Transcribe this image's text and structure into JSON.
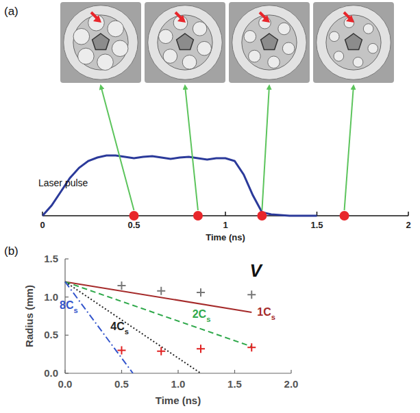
{
  "chart_data": [
    {
      "type": "line",
      "label": "(a)",
      "x_label": "Time (ns)",
      "xlim": [
        0,
        2
      ],
      "xticks": [
        0,
        0.5,
        1,
        1.5,
        2
      ],
      "ylim": [
        0,
        1
      ],
      "tick_labels": "x",
      "series": [
        {
          "name": "Laser pulse",
          "color": "#2b3a9a",
          "line_style": "solid",
          "x": [
            0,
            0.05,
            0.1,
            0.15,
            0.2,
            0.25,
            0.3,
            0.35,
            0.4,
            0.45,
            0.5,
            0.55,
            0.6,
            0.65,
            0.7,
            0.75,
            0.8,
            0.85,
            0.9,
            0.95,
            1.0,
            1.05,
            1.1,
            1.15,
            1.2,
            1.25,
            1.3,
            1.35,
            1.4,
            1.45,
            1.5
          ],
          "values": [
            0,
            0.15,
            0.35,
            0.55,
            0.7,
            0.8,
            0.85,
            0.88,
            0.88,
            0.86,
            0.84,
            0.86,
            0.87,
            0.85,
            0.83,
            0.85,
            0.86,
            0.84,
            0.82,
            0.84,
            0.84,
            0.8,
            0.6,
            0.3,
            0.05,
            0.02,
            0.01,
            0,
            0,
            0,
            0
          ]
        },
        {
          "type": "scatter",
          "marker": "circle",
          "color": "#e8262b",
          "x": [
            0.5,
            0.85,
            1.2,
            1.65
          ],
          "values": [
            0,
            0,
            0,
            0
          ]
        }
      ]
    },
    {
      "type": "line",
      "label": "(b)",
      "x_label": "Time (ns)",
      "y_label": "Radius (mm)",
      "xlim": [
        0,
        2
      ],
      "ylim": [
        0,
        1.5
      ],
      "xticks": [
        {
          "value": 0,
          "label": "0.0"
        },
        {
          "value": 0.5,
          "label": "0.5"
        },
        {
          "value": 1,
          "label": "1.0"
        },
        {
          "value": 1.5,
          "label": "1.5"
        },
        {
          "value": 2,
          "label": "2.0"
        }
      ],
      "yticks": [
        {
          "value": 0,
          "label": "0.0"
        },
        {
          "value": 0.5,
          "label": "0.5"
        },
        {
          "value": 1,
          "label": "1.0"
        },
        {
          "value": 1.5,
          "label": "1.5"
        }
      ],
      "series": [
        {
          "name": "1Cs",
          "color": "#a52a2a",
          "line_style": "solid",
          "x": [
            0,
            1.65
          ],
          "values": [
            1.2,
            0.8
          ]
        },
        {
          "name": "2Cs",
          "color": "#2ea84a",
          "line_style": "dashed",
          "x": [
            0,
            1.65
          ],
          "values": [
            1.2,
            0.35
          ]
        },
        {
          "name": "4Cs",
          "color": "#222222",
          "line_style": "dotted",
          "x": [
            0,
            1.2
          ],
          "values": [
            1.2,
            0
          ]
        },
        {
          "name": "8Cs",
          "color": "#3355cc",
          "line_style": "dashdot",
          "x": [
            0,
            0.6
          ],
          "values": [
            1.2,
            0
          ]
        },
        {
          "name": "V",
          "type": "scatter",
          "marker": "plus",
          "color": "#777777",
          "x": [
            0.5,
            0.85,
            1.2,
            1.65
          ],
          "values": [
            1.15,
            1.08,
            1.06,
            1.03
          ]
        },
        {
          "type": "scatter",
          "marker": "plus",
          "color": "#e02020",
          "x": [
            0.5,
            0.85,
            1.2,
            1.65
          ],
          "values": [
            0.3,
            0.29,
            0.32,
            0.34
          ]
        }
      ]
    }
  ]
}
